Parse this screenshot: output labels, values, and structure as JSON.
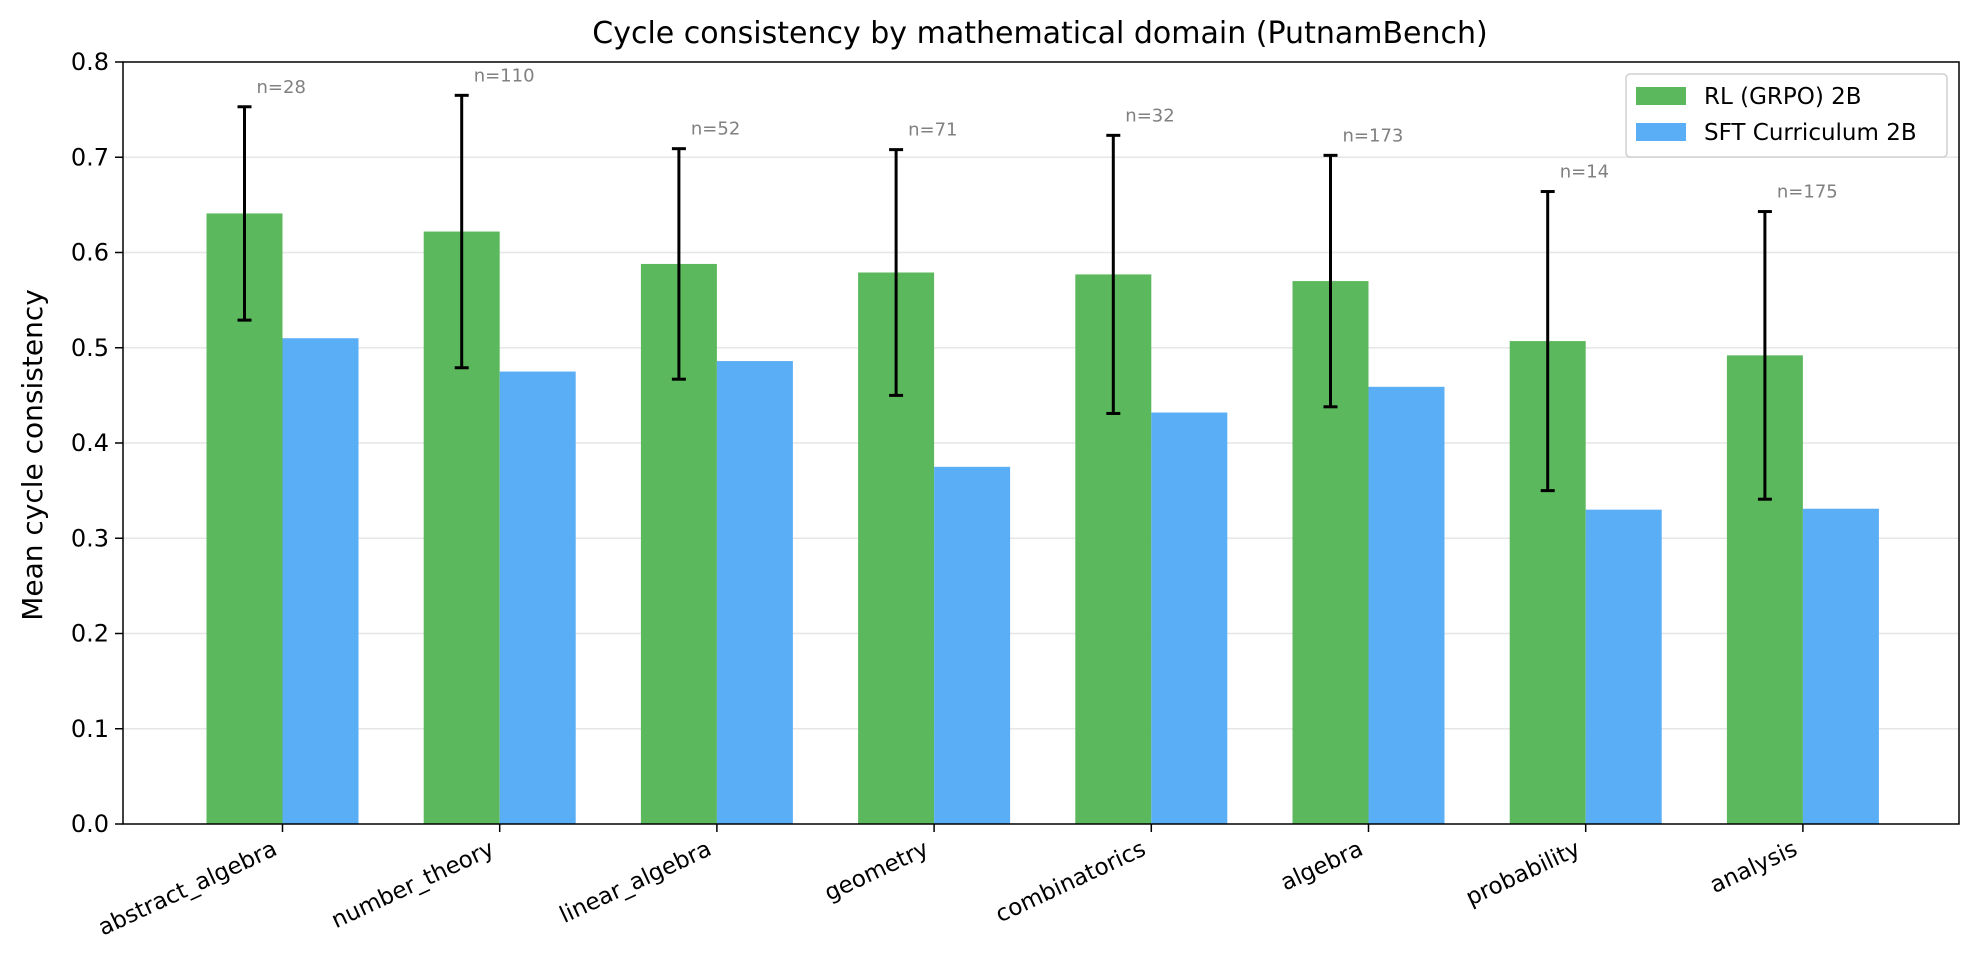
{
  "chart_data": {
    "type": "bar",
    "title": "Cycle consistency by mathematical domain (PutnamBench)",
    "xlabel": "",
    "ylabel": "Mean cycle consistency",
    "ylim": [
      0,
      0.8
    ],
    "yticks": [
      "0.0",
      "0.1",
      "0.2",
      "0.3",
      "0.4",
      "0.5",
      "0.6",
      "0.7",
      "0.8"
    ],
    "grid": "horizontal",
    "legend_position": "top-right",
    "categories": [
      "abstract_algebra",
      "number_theory",
      "linear_algebra",
      "geometry",
      "combinatorics",
      "algebra",
      "probability",
      "analysis"
    ],
    "sample_counts": [
      "n=28",
      "n=110",
      "n=52",
      "n=71",
      "n=32",
      "n=173",
      "n=14",
      "n=175"
    ],
    "series": [
      {
        "name": "RL (GRPO) 2B",
        "color": "#5cb85c",
        "values": [
          0.641,
          0.622,
          0.588,
          0.579,
          0.577,
          0.57,
          0.507,
          0.492
        ],
        "error": [
          0.112,
          0.143,
          0.121,
          0.129,
          0.146,
          0.132,
          0.157,
          0.151
        ]
      },
      {
        "name": "SFT Curriculum 2B",
        "color": "#5aaef5",
        "values": [
          0.51,
          0.475,
          0.486,
          0.375,
          0.432,
          0.459,
          0.33,
          0.331
        ]
      }
    ]
  }
}
